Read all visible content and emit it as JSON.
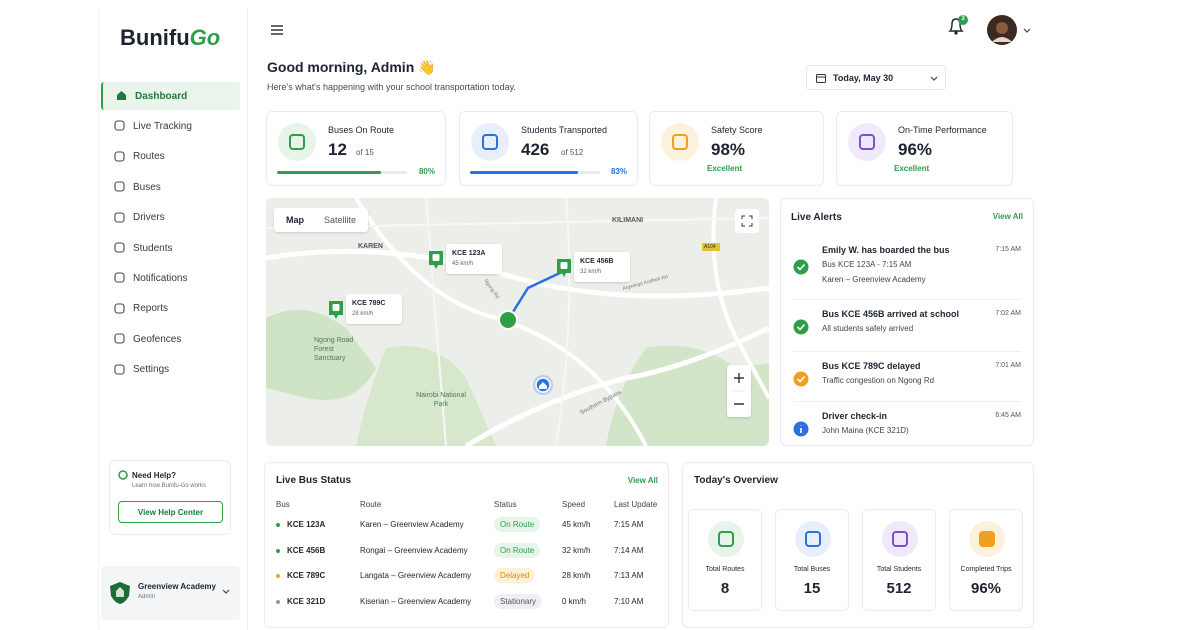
{
  "brand": "Bunifu",
  "brand_mark": "Go",
  "sidebar": {
    "nav": [
      "Dashboard",
      "Live Tracking",
      "Routes",
      "Buses",
      "Drivers",
      "Students",
      "Notifications",
      "Reports",
      "Geofences",
      "Settings"
    ],
    "help": {
      "title": "Need Help?",
      "subtitle": "Learn how Bunifu-Go works",
      "button": "View Help Center"
    },
    "school": {
      "name": "Greenview Academy",
      "role": "Admin"
    }
  },
  "header": {
    "notifications": 3,
    "greeting": "Good morning, Admin 👋",
    "subtitle": "Here's what's happening with your school transportation today.",
    "date": "Today, May 30"
  },
  "stats": [
    {
      "label": "Buses On Route",
      "value": 12,
      "of": "of 15",
      "progress": 80,
      "progress_label": "80%"
    },
    {
      "label": "Students Transported",
      "value": 426,
      "of": "of 512",
      "progress": 83,
      "progress_label": "83%"
    },
    {
      "label": "Safety Score",
      "value": "98%",
      "status": "Excellent"
    },
    {
      "label": "On-Time Performance",
      "value": "96%",
      "status": "Excellent"
    }
  ],
  "map": {
    "tabs": [
      "Map",
      "Satellite"
    ],
    "places": [
      "KAREN",
      "KILIMANI",
      "Ngong Road Forest Sanctuary",
      "Nairobi National Park"
    ],
    "roads": [
      "Ngong Rd",
      "Argwings Kodhek Rd",
      "Southern Bypass",
      "A104"
    ],
    "buses": [
      {
        "id": "KCE 123A",
        "speed": "45 km/h"
      },
      {
        "id": "KCE 456B",
        "speed": "32 km/h"
      },
      {
        "id": "KCE 789C",
        "speed": "28 km/h"
      }
    ]
  },
  "alerts": {
    "title": "Live Alerts",
    "view_all": "View All",
    "items": [
      {
        "title": "Emily W. has boarded the bus",
        "lines": [
          "Bus KCE 123A - 7:15 AM",
          "Karen – Greenview Academy"
        ],
        "time": "7:15 AM"
      },
      {
        "title": "Bus KCE 456B arrived at school",
        "lines": [
          "All students safely arrived"
        ],
        "time": "7:02 AM"
      },
      {
        "title": "Bus KCE 789C delayed",
        "lines": [
          "Traffic congestion on Ngong Rd"
        ],
        "time": "7:01 AM"
      },
      {
        "title": "Driver check-in",
        "lines": [
          "John Maina (KCE 321D)"
        ],
        "time": "6:45 AM"
      }
    ]
  },
  "bus_status": {
    "title": "Live Bus Status",
    "view_all": "View All",
    "columns": [
      "Bus",
      "Route",
      "Status",
      "Speed",
      "Last Update"
    ],
    "rows": [
      [
        "KCE 123A",
        "Karen – Greenview Academy",
        "On Route",
        "45 km/h",
        "7:15 AM"
      ],
      [
        "KCE 456B",
        "Rongai – Greenview Academy",
        "On Route",
        "32 km/h",
        "7:14 AM"
      ],
      [
        "KCE 789C",
        "Langata – Greenview Academy",
        "Delayed",
        "28 km/h",
        "7:13 AM"
      ],
      [
        "KCE 321D",
        "Kiserian – Greenview Academy",
        "Stationary",
        "0 km/h",
        "7:10 AM"
      ]
    ]
  },
  "overview": {
    "title": "Today's Overview",
    "items": [
      {
        "label": "Total Routes",
        "value": 8
      },
      {
        "label": "Total Buses",
        "value": 15
      },
      {
        "label": "Total Students",
        "value": 512
      },
      {
        "label": "Completed Trips",
        "value": "96%"
      }
    ]
  }
}
